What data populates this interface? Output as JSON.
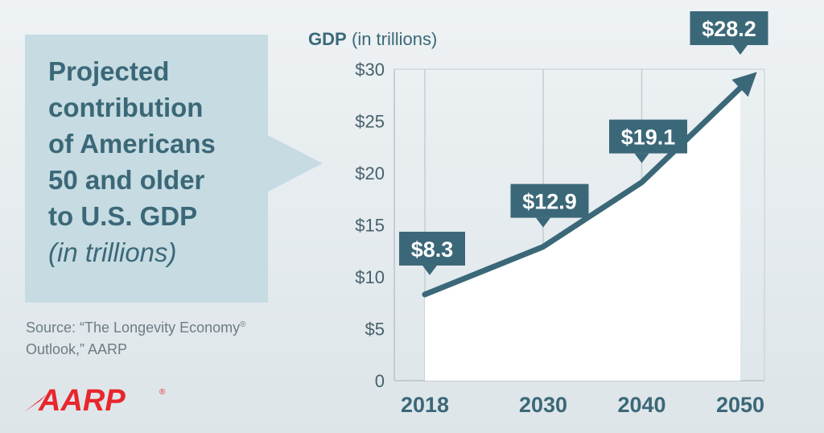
{
  "headline": {
    "lines": [
      "Projected",
      "contribution",
      "of Americans",
      "50 and older",
      "to U.S. GDP"
    ],
    "italic_line": "(in trillions)"
  },
  "source": {
    "line1": "Source: “The Longevity Economy",
    "reg_mark": "®",
    "line2": "Outlook,” AARP"
  },
  "logo": {
    "text": "AARP",
    "reg_mark": "®",
    "color": "#e8262d"
  },
  "colors": {
    "line": "#3b6878",
    "label_box": "#3b6878",
    "fill_area": "#ffffff",
    "callout_bg": "#c6dbe2"
  },
  "chart_data": {
    "type": "line",
    "title": "Projected contribution of Americans 50 and older to U.S. GDP (in trillions)",
    "ylabel_main": "GDP",
    "ylabel_sub": "(in trillions)",
    "xlabel": "",
    "categories": [
      "2018",
      "2030",
      "2040",
      "2050"
    ],
    "x": [
      2018,
      2030,
      2040,
      2050
    ],
    "values": [
      8.3,
      12.9,
      19.1,
      28.2
    ],
    "data_labels": [
      "$8.3",
      "$12.9",
      "$19.1",
      "$28.2"
    ],
    "ylim": [
      0,
      30
    ],
    "yticks": [
      0,
      5,
      10,
      15,
      20,
      25,
      30
    ],
    "ytick_labels": [
      "0",
      "$5",
      "$10",
      "$15",
      "$20",
      "$25",
      "$30"
    ],
    "grid": true,
    "area_fill": true,
    "arrow_end": true
  }
}
